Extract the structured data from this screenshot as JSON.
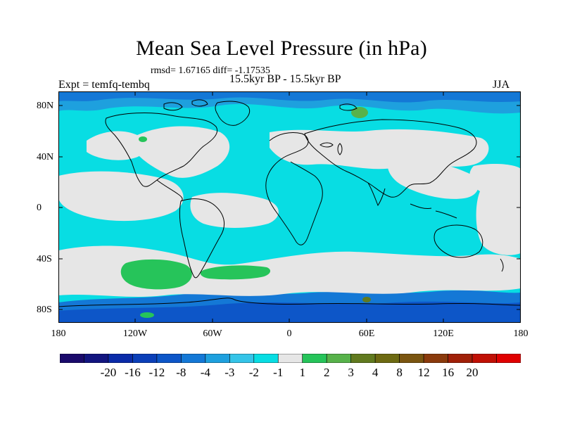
{
  "title": "Mean Sea Level Pressure (in hPa)",
  "stats": "rmsd= 1.67165 diff= -1.17535",
  "experiment": "Expt = temfq-tembq",
  "period": "15.5kyr BP - 15.5kyr BP",
  "season": "JJA",
  "y_ticks": [
    "80N",
    "40N",
    "0",
    "40S",
    "80S"
  ],
  "x_ticks": [
    "180",
    "120W",
    "60W",
    "0",
    "60E",
    "120E",
    "180"
  ],
  "colorbar": {
    "colors": [
      "#1a0a6b",
      "#12157f",
      "#0a2ba8",
      "#0b3fb8",
      "#0d56c8",
      "#1478d6",
      "#1ea0de",
      "#35c4e8",
      "#08dde3",
      "#e6e6e6",
      "#26c45a",
      "#57b24a",
      "#617a1f",
      "#6d6a12",
      "#7a5510",
      "#8a3a0c",
      "#a02008",
      "#c01005",
      "#e00000"
    ],
    "labels": [
      "-20",
      "-16",
      "-12",
      "-8",
      "-4",
      "-3",
      "-2",
      "-1",
      "1",
      "2",
      "3",
      "4",
      "8",
      "12",
      "16",
      "20"
    ]
  }
}
